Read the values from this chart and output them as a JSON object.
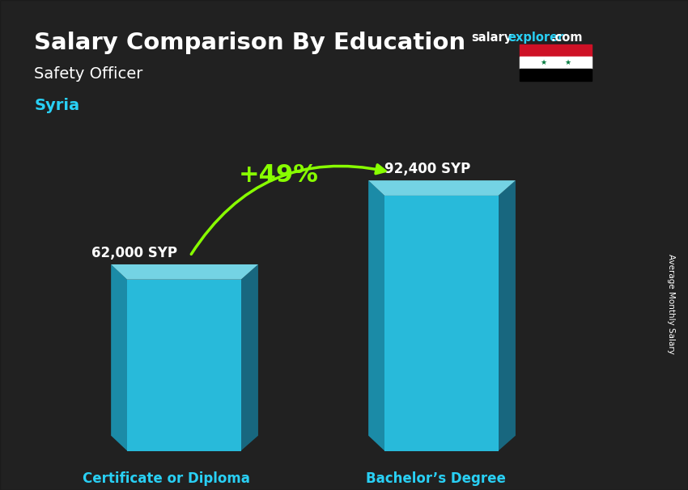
{
  "title_main": "Salary Comparison By Education",
  "subtitle_job": "Safety Officer",
  "subtitle_country": "Syria",
  "categories": [
    "Certificate or Diploma",
    "Bachelor’s Degree"
  ],
  "values": [
    62000,
    92400
  ],
  "value_labels": [
    "62,000 SYP",
    "92,400 SYP"
  ],
  "pct_change": "+49%",
  "bar_color_face": "#29d0f5",
  "bar_color_left": "#1a9ec0",
  "bar_color_top": "#7ee8fa",
  "bar_color_right": "#1580a0",
  "ylabel_side": "Average Monthly Salary",
  "bg_color": "#3a3a3a",
  "title_color": "#ffffff",
  "subtitle_job_color": "#ffffff",
  "subtitle_country_color": "#29d0f5",
  "label_color": "#ffffff",
  "category_color": "#29d0f5",
  "pct_color": "#88ff00",
  "arrow_color": "#88ff00",
  "salary_color": "#ffffff",
  "explorer_color": "#29d0f5",
  "com_color": "#ffffff",
  "flag_red": "#ce1126",
  "flag_white": "#ffffff",
  "flag_black": "#000000",
  "flag_star": "#007a3d"
}
